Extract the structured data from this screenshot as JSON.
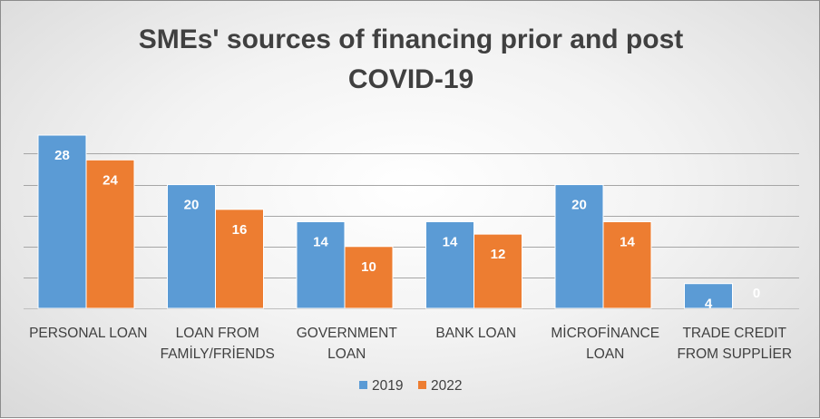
{
  "chart_data": {
    "type": "bar",
    "title": "SMEs' sources of financing prior and post COVID-19",
    "title_lines": [
      "SMEs' sources of financing prior and post",
      "COVID-19"
    ],
    "categories": [
      [
        "PERSONAL LOAN"
      ],
      [
        "LOAN FROM",
        "FAMİLY/FRİENDS"
      ],
      [
        "GOVERNMENT",
        "LOAN"
      ],
      [
        "BANK LOAN"
      ],
      [
        "MİCROFİNANCE",
        "LOAN"
      ],
      [
        "TRADE CREDIT",
        "FROM SUPPLİER"
      ]
    ],
    "series": [
      {
        "name": "2019",
        "color": "#5b9bd5",
        "values": [
          28,
          20,
          14,
          14,
          20,
          4
        ]
      },
      {
        "name": "2022",
        "color": "#ed7d31",
        "values": [
          24,
          16,
          10,
          12,
          14,
          0
        ]
      }
    ],
    "ylim": [
      0,
      28
    ],
    "gridlines": [
      5,
      10,
      15,
      20,
      25
    ],
    "grid": true,
    "data_labels": true,
    "legend_position": "bottom"
  }
}
